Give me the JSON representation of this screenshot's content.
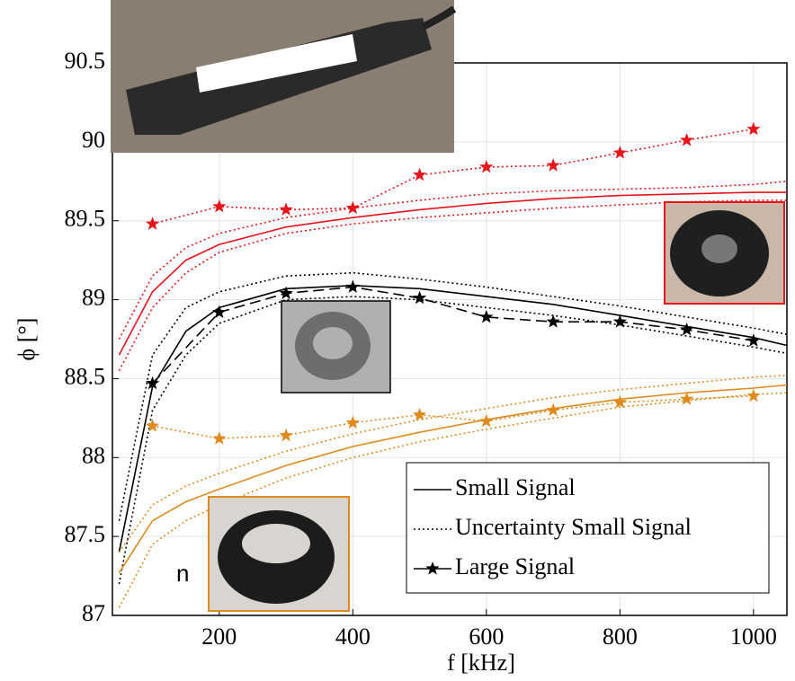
{
  "chart_data": {
    "type": "line",
    "xlabel": "f [kHz]",
    "ylabel": "ϕ [°]",
    "xlim": [
      40,
      1050
    ],
    "ylim": [
      87,
      90.5
    ],
    "xticks": [
      200,
      400,
      600,
      800,
      1000
    ],
    "yticks": [
      87,
      87.5,
      88,
      88.5,
      89,
      89.5,
      90,
      90.5
    ],
    "grid": true,
    "stray_text": "n",
    "legend": [
      {
        "label": "Small Signal",
        "style": "solid",
        "color": "#000000"
      },
      {
        "label": "Uncertainty Small Signal",
        "style": "dotted",
        "color": "#000000"
      },
      {
        "label": "Large Signal",
        "style": "dashed",
        "marker": "star",
        "color": "#000000"
      }
    ],
    "series": [
      {
        "color": "#e8141b",
        "style": "solid",
        "x": [
          50,
          100,
          150,
          200,
          300,
          400,
          500,
          600,
          700,
          800,
          900,
          1000,
          1050
        ],
        "values": [
          88.65,
          89.05,
          89.25,
          89.35,
          89.46,
          89.52,
          89.57,
          89.61,
          89.64,
          89.66,
          89.67,
          89.68,
          89.68
        ]
      },
      {
        "color": "#e8141b",
        "style": "dotted",
        "x": [
          50,
          100,
          150,
          200,
          300,
          400,
          500,
          600,
          700,
          800,
          900,
          1000,
          1050
        ],
        "values": [
          88.75,
          89.15,
          89.33,
          89.42,
          89.52,
          89.58,
          89.63,
          89.67,
          89.69,
          89.7,
          89.71,
          89.73,
          89.75
        ]
      },
      {
        "color": "#e8141b",
        "style": "dotted",
        "x": [
          50,
          100,
          150,
          200,
          300,
          400,
          500,
          600,
          700,
          800,
          900,
          1000,
          1050
        ],
        "values": [
          88.55,
          88.95,
          89.17,
          89.3,
          89.42,
          89.48,
          89.52,
          89.55,
          89.58,
          89.6,
          89.62,
          89.63,
          89.63
        ]
      },
      {
        "color": "#e8141b",
        "style": "dotted",
        "marker": "star",
        "x": [
          100,
          200,
          300,
          400,
          500,
          600,
          700,
          800,
          900,
          1000
        ],
        "values": [
          89.48,
          89.59,
          89.57,
          89.58,
          89.79,
          89.84,
          89.85,
          89.93,
          90.01,
          90.08
        ]
      },
      {
        "color": "#000000",
        "style": "solid",
        "x": [
          50,
          100,
          150,
          200,
          300,
          400,
          500,
          600,
          700,
          800,
          900,
          1000,
          1050
        ],
        "values": [
          87.4,
          88.45,
          88.8,
          88.95,
          89.07,
          89.09,
          89.07,
          89.02,
          88.97,
          88.9,
          88.83,
          88.76,
          88.71
        ]
      },
      {
        "color": "#000000",
        "style": "dotted",
        "x": [
          50,
          100,
          150,
          200,
          300,
          400,
          500,
          600,
          700,
          800,
          900,
          1000,
          1050
        ],
        "values": [
          87.6,
          88.65,
          88.95,
          89.05,
          89.15,
          89.17,
          89.13,
          89.08,
          89.02,
          88.96,
          88.89,
          88.82,
          88.78
        ]
      },
      {
        "color": "#000000",
        "style": "dotted",
        "x": [
          50,
          100,
          150,
          200,
          300,
          400,
          500,
          600,
          700,
          800,
          900,
          1000,
          1050
        ],
        "values": [
          87.2,
          88.3,
          88.65,
          88.85,
          89.0,
          89.02,
          89.0,
          88.95,
          88.9,
          88.84,
          88.77,
          88.7,
          88.66
        ]
      },
      {
        "color": "#000000",
        "style": "dashed",
        "marker": "star",
        "x": [
          100,
          200,
          300,
          400,
          500,
          600,
          700,
          800,
          900,
          1000
        ],
        "values": [
          88.47,
          88.92,
          89.04,
          89.08,
          89.01,
          88.89,
          88.86,
          88.86,
          88.81,
          88.74
        ]
      },
      {
        "color": "#e08a1e",
        "style": "solid",
        "x": [
          50,
          100,
          150,
          200,
          300,
          400,
          500,
          600,
          700,
          800,
          900,
          1000,
          1050
        ],
        "values": [
          87.27,
          87.6,
          87.72,
          87.8,
          87.95,
          88.07,
          88.16,
          88.24,
          88.31,
          88.37,
          88.41,
          88.44,
          88.46
        ]
      },
      {
        "color": "#e08a1e",
        "style": "dotted",
        "x": [
          50,
          100,
          150,
          200,
          300,
          400,
          500,
          600,
          700,
          800,
          900,
          1000,
          1050
        ],
        "values": [
          87.4,
          87.7,
          87.82,
          87.9,
          88.04,
          88.15,
          88.24,
          88.31,
          88.38,
          88.43,
          88.47,
          88.51,
          88.52
        ]
      },
      {
        "color": "#e08a1e",
        "style": "dotted",
        "x": [
          50,
          100,
          150,
          200,
          300,
          400,
          500,
          600,
          700,
          800,
          900,
          1000,
          1050
        ],
        "values": [
          87.05,
          87.45,
          87.6,
          87.7,
          87.87,
          88.0,
          88.1,
          88.18,
          88.25,
          88.32,
          88.36,
          88.4,
          88.41
        ]
      },
      {
        "color": "#e08a1e",
        "style": "dotted",
        "marker": "star",
        "x": [
          100,
          200,
          300,
          400,
          500,
          600,
          700,
          800,
          900,
          1000
        ],
        "values": [
          88.2,
          88.12,
          88.14,
          88.22,
          88.27,
          88.23,
          88.3,
          88.35,
          88.37,
          88.39
        ]
      }
    ]
  }
}
